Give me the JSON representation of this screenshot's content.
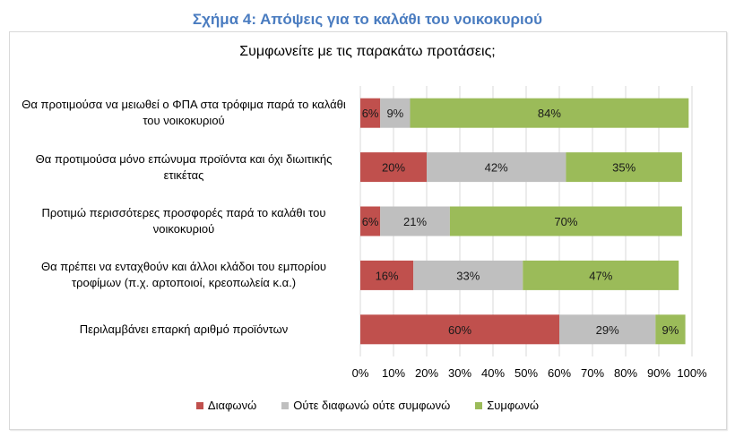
{
  "figure_title": "Σχήμα 4: Απόψεις για το καλάθι του νοικοκυριού",
  "chart_data": {
    "type": "bar",
    "orientation": "horizontal",
    "stacked": "percent",
    "title": "Συμφωνείτε με τις παρακάτω προτάσεις;",
    "xlabel": "",
    "ylabel": "",
    "xlim": [
      0,
      100
    ],
    "x_ticks": [
      "0%",
      "10%",
      "20%",
      "30%",
      "40%",
      "50%",
      "60%",
      "70%",
      "80%",
      "90%",
      "100%"
    ],
    "grid": "vertical",
    "legend_position": "bottom",
    "categories": [
      "Θα προτιμούσα να μειωθεί ο ΦΠΑ στα τρόφιμα παρά το καλάθι του νοικοκυριού",
      "Θα προτιμούσα μόνο επώνυμα προϊόντα και όχι διωιτικής ετικέτας",
      "Προτιμώ περισσότερες προσφορές παρά το καλάθι του νοικοκυριού",
      "Θα πρέπει να ενταχθούν και άλλοι κλάδοι του εμπορίου τροφίμων (π.χ. αρτοποιοί, κρεοπωλεία κ.α.)",
      "Περιλαμβάνει επαρκή αριθμό προϊόντων"
    ],
    "series": [
      {
        "name": "Διαφωνώ",
        "color": "#c0504d",
        "values": [
          6,
          20,
          6,
          16,
          60
        ],
        "labels": [
          "6%",
          "20%",
          "6%",
          "16%",
          "60%"
        ]
      },
      {
        "name": "Ούτε διαφωνώ ούτε συμφωνώ",
        "color": "#bfbfbf",
        "values": [
          9,
          42,
          21,
          33,
          29
        ],
        "labels": [
          "9%",
          "42%",
          "21%",
          "33%",
          "29%"
        ]
      },
      {
        "name": "Συμφωνώ",
        "color": "#9bbb59",
        "values": [
          84,
          35,
          70,
          47,
          9
        ],
        "labels": [
          "84%",
          "35%",
          "70%",
          "47%",
          "9%"
        ]
      }
    ]
  },
  "category_lines": [
    [
      "Θα προτιμούσα να μειωθεί ο ΦΠΑ στα τρόφιμα παρά το καλάθι",
      "του νοικοκυριού"
    ],
    [
      "Θα προτιμούσα μόνο επώνυμα προϊόντα και όχι διωιτικής",
      "ετικέτας"
    ],
    [
      "Προτιμώ περισσότερες προσφορές παρά το καλάθι του",
      "νοικοκυριού"
    ],
    [
      "Θα πρέπει να ενταχθούν και άλλοι κλάδοι του εμπορίου",
      "τροφίμων (π.χ. αρτοποιοί, κρεοπωλεία κ.α.)"
    ],
    [
      "Περιλαμβάνει επαρκή αριθμό προϊόντων"
    ]
  ]
}
